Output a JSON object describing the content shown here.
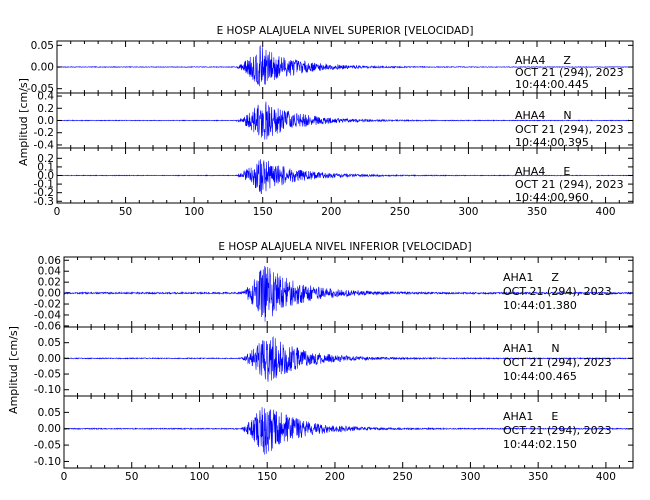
{
  "chart_data": {
    "type": "line",
    "line_color": "#0000ff",
    "axis_color": "#000000",
    "x_ticks": [
      0,
      50,
      100,
      150,
      200,
      250,
      300,
      350,
      400
    ],
    "xlim": [
      0,
      420
    ],
    "groups": [
      {
        "title": "E HOSP ALAJUELA NIVEL SUPERIOR [VELOCIDAD]",
        "ylabel": "Amplitud [cm/s]",
        "traces": [
          {
            "station": "AHA4",
            "component": "Z",
            "date": "OCT 21 (294), 2023",
            "time": "10:44:00.445",
            "ylim": [
              -0.06,
              0.06
            ],
            "yticks": [
              "0.05",
              "0.00",
              "-0.05"
            ],
            "ytick_values": [
              0.05,
              0.0,
              -0.05
            ],
            "onset": 130,
            "peak_time": 148,
            "peak_amplitude": 0.05,
            "noise": 0.0008
          },
          {
            "station": "AHA4",
            "component": "N",
            "date": "OCT 21 (294), 2023",
            "time": "10:44:00.395",
            "ylim": [
              -0.45,
              0.45
            ],
            "yticks": [
              "0.4",
              "0.2",
              "0.0",
              "-0.2",
              "-0.4"
            ],
            "ytick_values": [
              0.4,
              0.2,
              0.0,
              -0.2,
              -0.4
            ],
            "onset": 130,
            "peak_time": 150,
            "peak_amplitude": 0.35,
            "noise": 0.006
          },
          {
            "station": "AHA4",
            "component": "E",
            "date": "OCT 21 (294), 2023",
            "time": "10:44:00.960",
            "ylim": [
              -0.32,
              0.32
            ],
            "yticks": [
              "0.2",
              "0.1",
              "0.0",
              "-0.1",
              "-0.2",
              "-0.3"
            ],
            "ytick_values": [
              0.2,
              0.1,
              0.0,
              -0.1,
              -0.2,
              -0.3
            ],
            "onset": 130,
            "peak_time": 148,
            "peak_amplitude": 0.22,
            "noise": 0.004
          }
        ]
      },
      {
        "title": "E HOSP ALAJUELA NIVEL INFERIOR [VELOCIDAD]",
        "ylabel": "Amplitud [cm/s]",
        "traces": [
          {
            "station": "AHA1",
            "component": "Z",
            "date": "OCT 21 (294), 2023",
            "time": "10:44:01.380",
            "ylim": [
              -0.062,
              0.066
            ],
            "yticks": [
              "0.06",
              "0.04",
              "0.02",
              "0.00",
              "-0.02",
              "-0.04",
              "-0.06"
            ],
            "ytick_values": [
              0.06,
              0.04,
              0.02,
              0.0,
              -0.02,
              -0.04,
              -0.06
            ],
            "onset": 130,
            "peak_time": 148,
            "peak_amplitude": 0.055,
            "noise": 0.0015
          },
          {
            "station": "AHA1",
            "component": "N",
            "date": "OCT 21 (294), 2023",
            "time": "10:44:00.465",
            "ylim": [
              -0.12,
              0.1
            ],
            "yticks": [
              "0.05",
              "0.00",
              "-0.05",
              "-0.10"
            ],
            "ytick_values": [
              0.05,
              0.0,
              -0.05,
              -0.1
            ],
            "onset": 130,
            "peak_time": 150,
            "peak_amplitude": 0.085,
            "noise": 0.0015
          },
          {
            "station": "AHA1",
            "component": "E",
            "date": "OCT 21 (294), 2023",
            "time": "10:44:02.150",
            "ylim": [
              -0.12,
              0.1
            ],
            "yticks": [
              "0.05",
              "0.00",
              "-0.05",
              "-0.10"
            ],
            "ytick_values": [
              0.05,
              0.0,
              -0.05,
              -0.1
            ],
            "onset": 130,
            "peak_time": 148,
            "peak_amplitude": 0.085,
            "noise": 0.0015
          }
        ]
      }
    ]
  }
}
